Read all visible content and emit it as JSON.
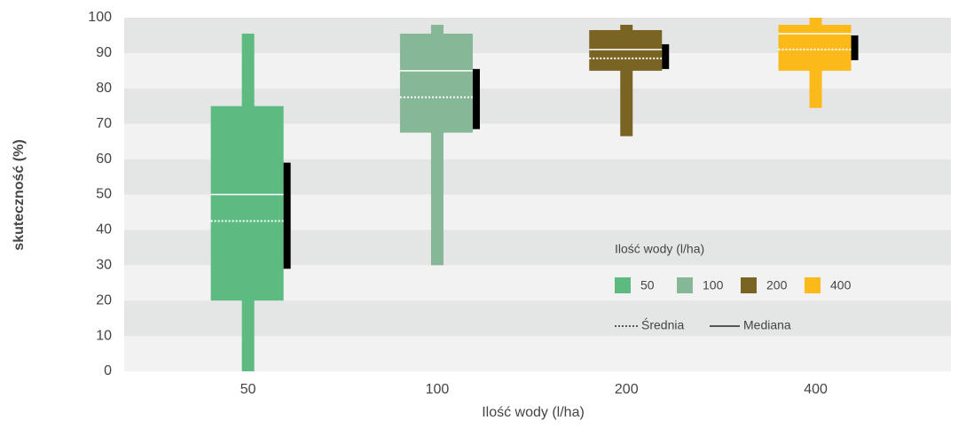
{
  "chart_data": {
    "type": "box",
    "y_label": "skuteczność (%)",
    "x_label": "Ilość wody (l/ha)",
    "categories": [
      "50",
      "100",
      "200",
      "400"
    ],
    "ylim": [
      0,
      100
    ],
    "yticks": [
      0,
      10,
      20,
      30,
      40,
      50,
      60,
      70,
      80,
      90,
      100
    ],
    "banded_background": true,
    "legend": {
      "title": "Ilość wody (l/ha)",
      "mean_label": "Średnia",
      "median_label": "Mediana",
      "position": "right"
    },
    "series": [
      {
        "name": "50",
        "color": "#5dba80",
        "min": 0,
        "q1": 20,
        "median": 50,
        "q3": 75,
        "max": 95.5,
        "mean": 42.5,
        "interval": [
          29,
          59
        ]
      },
      {
        "name": "100",
        "color": "#86b898",
        "min": 30,
        "q1": 67.5,
        "median": 85,
        "q3": 95.5,
        "max": 98,
        "mean": 77.5,
        "interval": [
          68.5,
          85.5
        ]
      },
      {
        "name": "200",
        "color": "#7a6424",
        "min": 66.5,
        "q1": 85,
        "median": 91,
        "q3": 96.5,
        "max": 98,
        "mean": 88.5,
        "interval": [
          85.5,
          92.5
        ]
      },
      {
        "name": "400",
        "color": "#fbb91a",
        "min": 74.5,
        "q1": 85,
        "median": 95.5,
        "q3": 98,
        "max": 100,
        "mean": 91,
        "interval": [
          88,
          95
        ]
      }
    ]
  }
}
